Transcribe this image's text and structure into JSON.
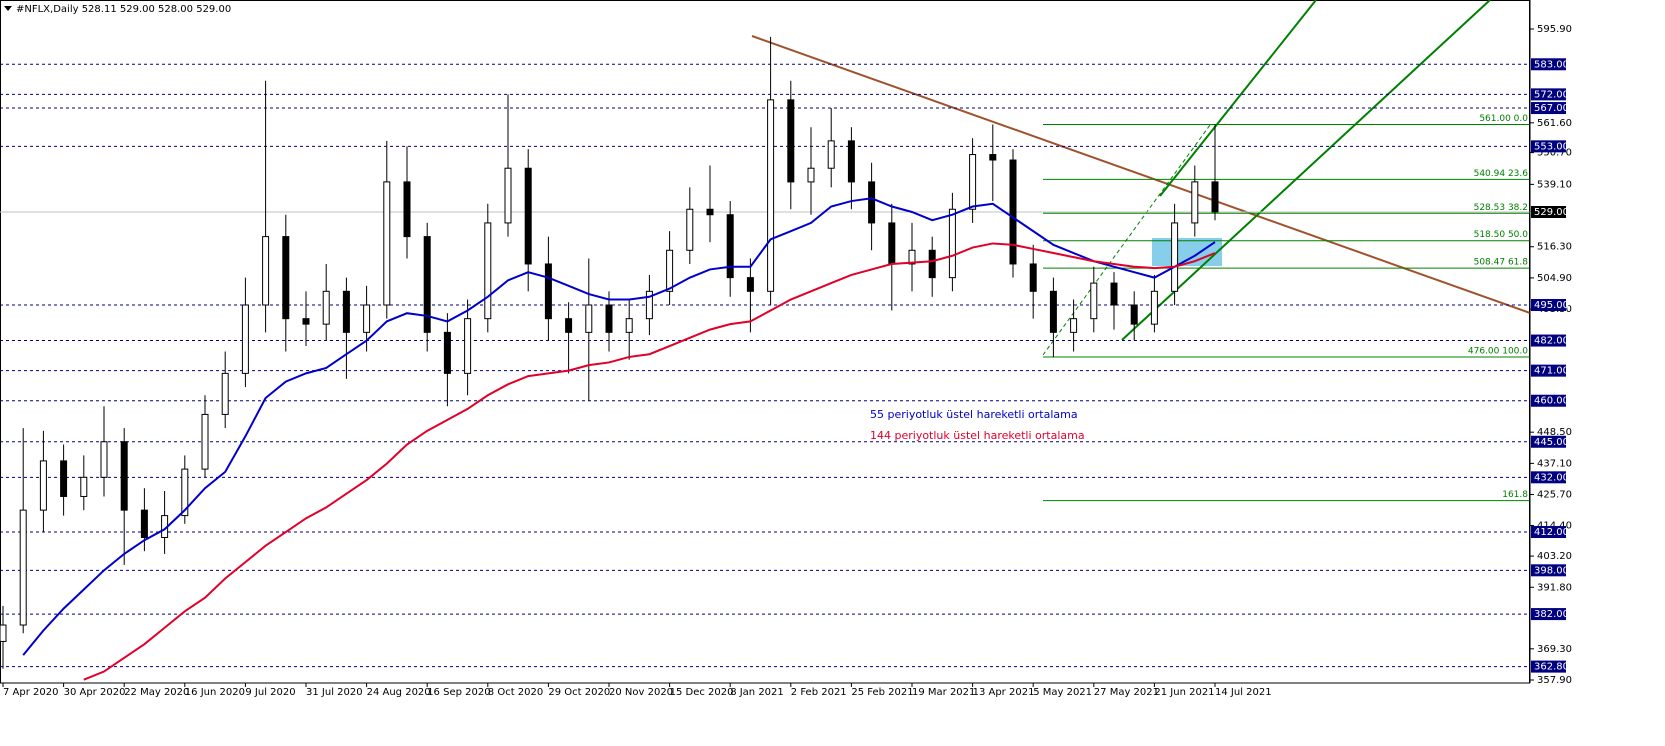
{
  "chart_data": {
    "type": "candlestick",
    "title": "#NFLX,Daily  528.11 529.00 528.00 529.00",
    "categories": [
      "7 Apr 2020",
      null,
      null,
      "30 Apr 2020",
      null,
      null,
      "22 May 2020",
      null,
      null,
      "16 Jun 2020",
      null,
      null,
      "9 Jul 2020",
      null,
      null,
      "31 Jul 2020",
      null,
      null,
      "24 Aug 2020",
      null,
      null,
      "16 Sep 2020",
      null,
      null,
      "8 Oct 2020",
      null,
      null,
      "29 Oct 2020",
      null,
      null,
      "20 Nov 2020",
      null,
      null,
      "15 Dec 2020",
      null,
      null,
      "8 Jan 2021",
      null,
      null,
      "2 Feb 2021",
      null,
      null,
      "25 Feb 2021",
      null,
      null,
      "19 Mar 2021",
      null,
      null,
      "13 Apr 2021",
      null,
      null,
      "5 May 2021",
      null,
      null,
      "27 May 2021",
      null,
      null,
      "21 Jun 2021",
      null,
      null,
      "14 Jul 2021"
    ],
    "open": [
      372,
      378,
      420,
      438,
      425,
      432,
      445,
      420,
      410,
      418,
      435,
      455,
      470,
      495,
      520,
      490,
      488,
      500,
      485,
      495,
      540,
      520,
      485,
      470,
      490,
      525,
      545,
      510,
      490,
      485,
      495,
      485,
      490,
      500,
      515,
      530,
      528,
      505,
      500,
      570,
      540,
      545,
      555,
      540,
      525,
      510,
      515,
      505,
      530,
      550,
      548,
      510,
      500,
      485,
      490,
      503,
      495,
      488,
      500,
      525,
      540
    ],
    "high": [
      385,
      450,
      449,
      444,
      440,
      458,
      450,
      428,
      427,
      440,
      462,
      478,
      505,
      577,
      528,
      500,
      510,
      505,
      502,
      555,
      553,
      525,
      492,
      497,
      532,
      572,
      552,
      520,
      496,
      512,
      500,
      497,
      506,
      522,
      538,
      546,
      533,
      512,
      593,
      577,
      560,
      567,
      560,
      547,
      532,
      525,
      520,
      536,
      556,
      561,
      552,
      517,
      505,
      497,
      509,
      507,
      500,
      506,
      532,
      546,
      561
    ],
    "low": [
      362,
      375,
      412,
      418,
      420,
      425,
      400,
      405,
      404,
      415,
      432,
      450,
      465,
      485,
      478,
      480,
      482,
      468,
      478,
      490,
      512,
      478,
      458,
      462,
      485,
      520,
      500,
      482,
      470,
      460,
      478,
      475,
      484,
      495,
      510,
      518,
      498,
      485,
      495,
      530,
      528,
      538,
      530,
      515,
      493,
      500,
      498,
      500,
      525,
      533,
      505,
      490,
      476,
      478,
      485,
      486,
      482,
      485,
      495,
      520,
      526
    ],
    "close": [
      378,
      420,
      438,
      425,
      432,
      445,
      420,
      410,
      418,
      435,
      455,
      470,
      495,
      520,
      490,
      488,
      500,
      485,
      495,
      540,
      520,
      485,
      470,
      490,
      525,
      545,
      510,
      490,
      485,
      495,
      485,
      490,
      500,
      515,
      530,
      528,
      505,
      500,
      570,
      540,
      545,
      555,
      540,
      525,
      510,
      515,
      505,
      530,
      550,
      548,
      510,
      500,
      485,
      490,
      503,
      495,
      488,
      500,
      525,
      540,
      529
    ],
    "series": [
      {
        "name": "55 periyotluk üstel hareketli ortalama",
        "color": "#0000cc",
        "values": [
          null,
          367,
          376,
          384,
          391,
          398,
          404,
          409,
          413,
          420,
          428,
          434,
          447,
          461,
          467,
          470,
          472,
          477,
          482,
          489,
          492,
          491,
          489,
          493,
          498,
          504,
          507,
          505,
          502,
          499,
          497,
          497,
          498,
          501,
          505,
          508,
          509,
          509,
          519,
          522,
          525,
          531,
          533,
          534,
          531,
          529,
          526,
          528,
          531,
          532,
          527,
          522,
          517,
          514,
          511,
          509,
          507,
          505,
          509,
          513,
          518
        ]
      },
      {
        "name": "144 periyotluk üstel hareketli ortalama",
        "color": "#e0002a",
        "values": [
          null,
          null,
          null,
          null,
          358,
          361,
          366,
          371,
          377,
          383,
          388,
          395,
          401,
          407,
          412,
          417,
          421,
          426,
          431,
          437,
          444,
          449,
          453,
          457,
          462,
          466,
          469,
          470,
          471,
          473,
          474,
          476,
          477,
          480,
          483,
          486,
          488,
          489,
          493,
          497,
          500,
          503,
          506,
          508,
          510,
          510.5,
          511,
          513,
          516,
          517.5,
          517,
          515.5,
          514,
          512.5,
          511,
          510,
          509,
          508.5,
          509,
          511,
          514
        ]
      }
    ],
    "ylim": [
      357.9,
      595.9
    ],
    "yticks": [
      {
        "value": 595.9,
        "label": "595.90"
      },
      {
        "value": 561.6,
        "label": "561.60"
      },
      {
        "value": 550.7,
        "label": "550.70"
      },
      {
        "value": 539.1,
        "label": "539.10"
      },
      {
        "value": 516.3,
        "label": "516.30"
      },
      {
        "value": 504.9,
        "label": "504.90"
      },
      {
        "value": 493.5,
        "label": "493.50"
      },
      {
        "value": 448.5,
        "label": "448.50"
      },
      {
        "value": 437.1,
        "label": "437.10"
      },
      {
        "value": 425.7,
        "label": "425.70"
      },
      {
        "value": 414.4,
        "label": "414.40"
      },
      {
        "value": 403.2,
        "label": "403.20"
      },
      {
        "value": 391.8,
        "label": "391.80"
      },
      {
        "value": 369.3,
        "label": "369.30"
      },
      {
        "value": 357.9,
        "label": "357.90"
      }
    ],
    "levels": [
      {
        "value": 583,
        "label": "583.00"
      },
      {
        "value": 572,
        "label": "572.00"
      },
      {
        "value": 567,
        "label": "567.00"
      },
      {
        "value": 553,
        "label": "553.00"
      },
      {
        "value": 495,
        "label": "495.00"
      },
      {
        "value": 482,
        "label": "482.00"
      },
      {
        "value": 471,
        "label": "471.00"
      },
      {
        "value": 460,
        "label": "460.00"
      },
      {
        "value": 445,
        "label": "445.00"
      },
      {
        "value": 432,
        "label": "432.00"
      },
      {
        "value": 412,
        "label": "412.00"
      },
      {
        "value": 398,
        "label": "398.00"
      },
      {
        "value": 382,
        "label": "382.00"
      },
      {
        "value": 362.8,
        "label": "362.80"
      }
    ],
    "level_color": "#000080",
    "current_price": {
      "value": 529,
      "label": "529.00"
    },
    "fibonacci": [
      {
        "value": 561,
        "label": "561.00  0.0"
      },
      {
        "value": 540.94,
        "label": "540.94  23.6"
      },
      {
        "value": 528.53,
        "label": "528.53  38.2"
      },
      {
        "value": 518.5,
        "label": "518.50  50.0"
      },
      {
        "value": 508.47,
        "label": "508.47  61.8"
      },
      {
        "value": 476,
        "label": "476.00  100.0"
      },
      {
        "value": 423.47,
        "label": "161.8"
      }
    ],
    "fibonacci_color": "#008000"
  }
}
